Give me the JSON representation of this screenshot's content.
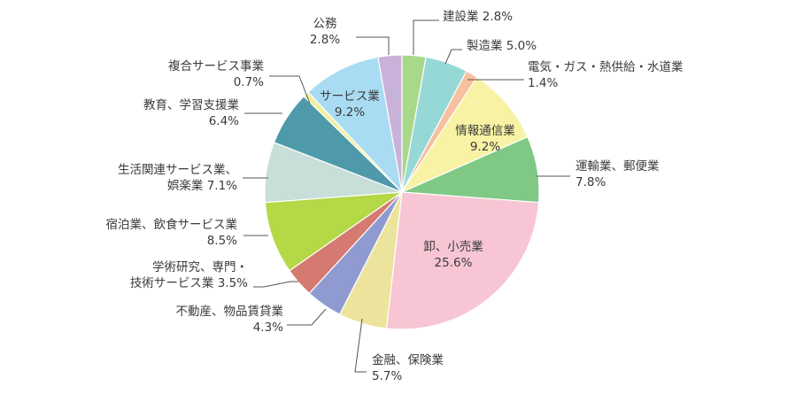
{
  "chart_data": {
    "type": "pie",
    "unit": "%",
    "slices": [
      {
        "name": "建設業",
        "value": 2.8,
        "pct": "2.8%",
        "color": "#a8d88a"
      },
      {
        "name": "製造業",
        "value": 5.0,
        "pct": "5.0%",
        "color": "#96d8d5"
      },
      {
        "name": "電気・ガス・熱供給・水道業",
        "value": 1.4,
        "pct": "1.4%",
        "color": "#f7c09e"
      },
      {
        "name": "情報通信業",
        "value": 9.2,
        "pct": "9.2%",
        "color": "#f7f2a4"
      },
      {
        "name": "運輸業、郵便業",
        "value": 7.8,
        "pct": "7.8%",
        "color": "#7fc985"
      },
      {
        "name": "卸、小売業",
        "value": 25.6,
        "pct": "25.6%",
        "color": "#f7c5d3"
      },
      {
        "name": "金融、保険業",
        "value": 5.7,
        "pct": "5.7%",
        "color": "#ece49c"
      },
      {
        "name": "不動産、物品賃貸業",
        "value": 4.3,
        "pct": "4.3%",
        "color": "#8f9bd0"
      },
      {
        "name": "学術研究、専門・技術サービス業",
        "value": 3.5,
        "pct": "3.5%",
        "color": "#d47a70"
      },
      {
        "name": "宿泊業、飲食サービス業",
        "value": 8.5,
        "pct": "8.5%",
        "color": "#b4d846"
      },
      {
        "name": "生活関連サービス業、娯楽業",
        "value": 7.1,
        "pct": "7.1%",
        "color": "#c8ded8"
      },
      {
        "name": "教育、学習支援業",
        "value": 6.4,
        "pct": "6.4%",
        "color": "#4f9aaa"
      },
      {
        "name": "複合サービス事業",
        "value": 0.7,
        "pct": "0.7%",
        "color": "#f2ef9c"
      },
      {
        "name": "サービス業",
        "value": 9.2,
        "pct": "9.2%",
        "color": "#a9dcf2"
      },
      {
        "name": "公務",
        "value": 2.8,
        "pct": "2.8%",
        "color": "#c8b2da"
      }
    ]
  }
}
